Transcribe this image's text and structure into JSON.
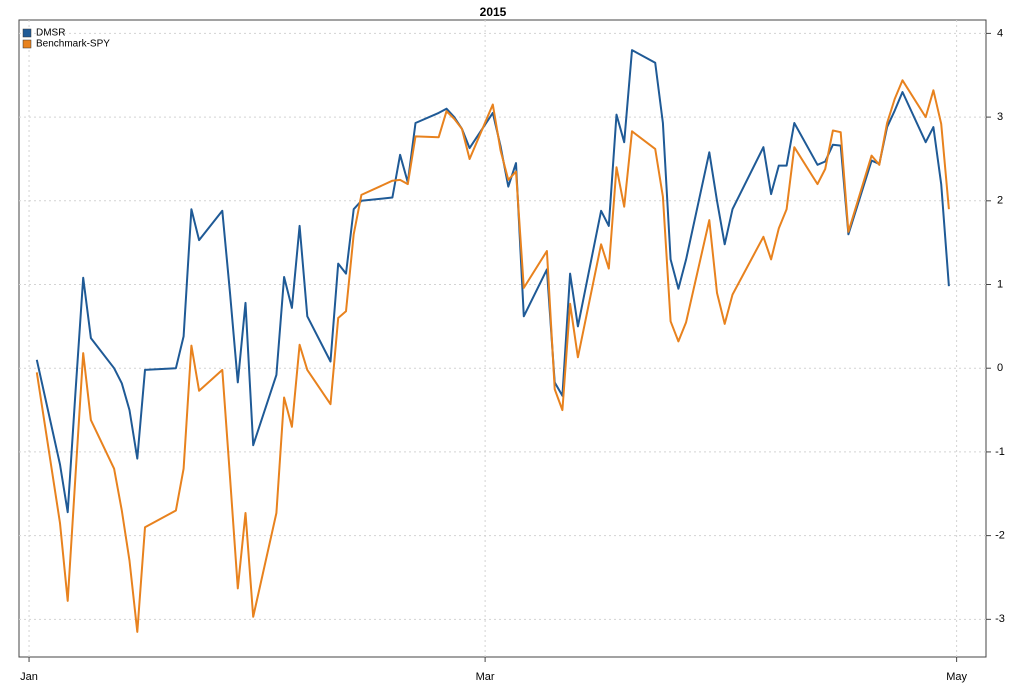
{
  "chart_data": {
    "type": "line",
    "title": "2015",
    "x": [
      1,
      4,
      5,
      6,
      7,
      8,
      11,
      12,
      13,
      14,
      15,
      19,
      20,
      21,
      22,
      25,
      26,
      27,
      28,
      29,
      32,
      33,
      34,
      35,
      36,
      39,
      40,
      41,
      42,
      43,
      47,
      48,
      49,
      50,
      53,
      54,
      55,
      56,
      57,
      60,
      61,
      62,
      63,
      64,
      67,
      68,
      69,
      70,
      71,
      74,
      75,
      76,
      77,
      78,
      81,
      82,
      83,
      84,
      85,
      88,
      89,
      90,
      91,
      95,
      96,
      97,
      98,
      99,
      102,
      103,
      104,
      105,
      106,
      109,
      110,
      111,
      112,
      113,
      116,
      117,
      118,
      119
    ],
    "series": [
      {
        "name": "DMSR",
        "color": "#1f5a96",
        "values": [
          0.1,
          -1.15,
          -1.72,
          -0.3,
          1.08,
          0.36,
          0.0,
          -0.18,
          -0.5,
          -1.08,
          -0.02,
          0.0,
          0.38,
          1.9,
          1.53,
          1.88,
          0.9,
          -0.17,
          0.78,
          -0.92,
          -0.08,
          1.09,
          0.72,
          1.7,
          0.62,
          0.08,
          1.25,
          1.13,
          1.9,
          2.0,
          2.04,
          2.55,
          2.22,
          2.93,
          3.05,
          3.1,
          3.0,
          2.86,
          2.63,
          3.05,
          2.65,
          2.17,
          2.45,
          0.62,
          1.18,
          -0.17,
          -0.33,
          1.13,
          0.5,
          1.88,
          1.7,
          3.03,
          2.7,
          3.8,
          3.65,
          2.93,
          1.3,
          0.95,
          1.3,
          2.58,
          2.0,
          1.48,
          1.9,
          2.64,
          2.08,
          2.42,
          2.42,
          2.93,
          2.43,
          2.47,
          2.67,
          2.66,
          1.6,
          2.48,
          2.44,
          2.88,
          3.08,
          3.3,
          2.7,
          2.88,
          2.2,
          0.98
        ]
      },
      {
        "name": "Benchmark-SPY",
        "color": "#e8821e",
        "values": [
          -0.05,
          -1.85,
          -2.78,
          -1.3,
          0.18,
          -0.62,
          -1.2,
          -1.7,
          -2.3,
          -3.15,
          -1.9,
          -1.7,
          -1.2,
          0.27,
          -0.27,
          -0.02,
          -1.3,
          -2.63,
          -1.73,
          -2.97,
          -1.73,
          -0.35,
          -0.7,
          0.28,
          -0.02,
          -0.43,
          0.6,
          0.68,
          1.6,
          2.07,
          2.24,
          2.25,
          2.2,
          2.77,
          2.76,
          3.07,
          2.98,
          2.86,
          2.5,
          3.15,
          2.6,
          2.25,
          2.35,
          0.96,
          1.4,
          -0.25,
          -0.5,
          0.77,
          0.13,
          1.48,
          1.19,
          2.4,
          1.93,
          2.83,
          2.62,
          2.05,
          0.56,
          0.32,
          0.55,
          1.77,
          0.9,
          0.53,
          0.88,
          1.57,
          1.3,
          1.67,
          1.9,
          2.64,
          2.2,
          2.38,
          2.84,
          2.82,
          1.63,
          2.54,
          2.43,
          2.93,
          3.22,
          3.44,
          3.0,
          3.32,
          2.92,
          1.9
        ]
      }
    ],
    "xlim": [
      -1.3,
      123.8
    ],
    "xticks": [
      {
        "value": 0,
        "label": "Jan"
      },
      {
        "value": 59,
        "label": "Mar"
      },
      {
        "value": 120,
        "label": "May"
      }
    ],
    "ylim": [
      -3.45,
      4.16
    ],
    "yticks": [
      -3,
      -2,
      -1,
      0,
      1,
      2,
      3,
      4
    ],
    "grid": true,
    "legend": "top-left"
  }
}
